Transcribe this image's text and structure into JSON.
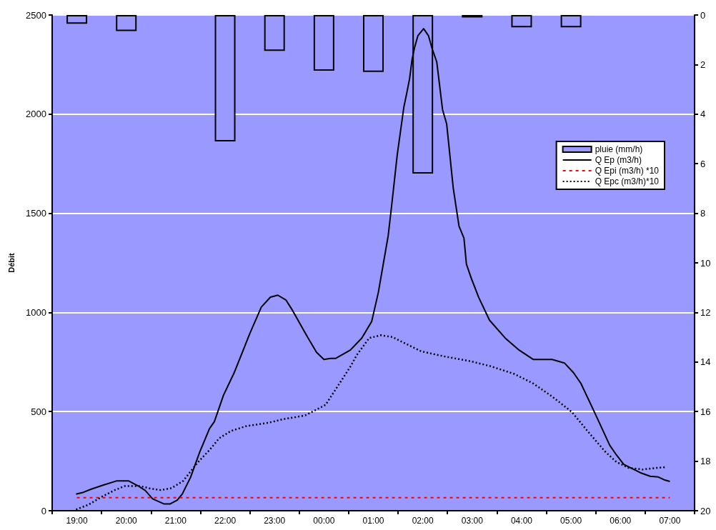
{
  "chart_data": {
    "type": "line",
    "ylabel": "Débit",
    "xlim": [
      "--01-01T18:30",
      "--01-02T07:30"
    ],
    "xticks": [
      {
        "value": "--01-01T18:30",
        "label": null
      },
      {
        "value": "--01-01T19:00",
        "label": "19:00"
      },
      {
        "value": "--01-01T19:30",
        "label": null
      },
      {
        "value": "--01-01T20:00",
        "label": "20:00"
      },
      {
        "value": "--01-01T20:30",
        "label": null
      },
      {
        "value": "--01-01T21:00",
        "label": "21:00"
      },
      {
        "value": "--01-01T21:30",
        "label": null
      },
      {
        "value": "--01-01T22:00",
        "label": "22:00"
      },
      {
        "value": "--01-01T22:30",
        "label": null
      },
      {
        "value": "--01-01T23:00",
        "label": "23:00"
      },
      {
        "value": "--01-01T23:30",
        "label": null
      },
      {
        "value": "--01-02T00:00",
        "label": "00:00"
      },
      {
        "value": "--01-02T00:30",
        "label": null
      },
      {
        "value": "--01-02T01:00",
        "label": "01:00"
      },
      {
        "value": "--01-02T01:30",
        "label": null
      },
      {
        "value": "--01-02T02:00",
        "label": "02:00"
      },
      {
        "value": "--01-02T02:30",
        "label": null
      },
      {
        "value": "--01-02T03:00",
        "label": "03:00"
      },
      {
        "value": "--01-02T03:30",
        "label": null
      },
      {
        "value": "--01-02T04:00",
        "label": "04:00"
      },
      {
        "value": "--01-02T04:30",
        "label": null
      },
      {
        "value": "--01-02T05:00",
        "label": "05:00"
      },
      {
        "value": "--01-02T05:30",
        "label": null
      },
      {
        "value": "--01-02T06:00",
        "label": "06:00"
      },
      {
        "value": "--01-02T06:30",
        "label": null
      },
      {
        "value": "--01-02T07:00",
        "label": "07:00"
      },
      {
        "value": "--01-02T07:30",
        "label": null
      }
    ],
    "ylim": [
      0,
      2500
    ],
    "yticks": [
      0,
      500,
      1000,
      1500,
      2000,
      2500
    ],
    "y2lim": [
      20,
      0
    ],
    "y2ticks": [
      0,
      2,
      4,
      6,
      8,
      10,
      12,
      14,
      16,
      18,
      20
    ],
    "grid": "y",
    "legend": "right",
    "marker": "none",
    "series": [
      {
        "name": "pluie (mm/h)",
        "type": "bar",
        "axis": "y2",
        "color": "#9999ff",
        "x": [
          "--01-01T19:00",
          "--01-01T20:00",
          "--01-01T21:00",
          "--01-01T22:00",
          "--01-01T23:00",
          "--01-02T00:00",
          "--01-02T01:00",
          "--01-02T02:00",
          "--01-02T03:00",
          "--01-02T04:00",
          "--01-02T05:00",
          "--01-02T06:00",
          "--01-02T07:00"
        ],
        "values": [
          0.35,
          0.65,
          0,
          5.1,
          1.45,
          2.25,
          2.3,
          6.4,
          0.1,
          0.5,
          0.5,
          0,
          0
        ]
      },
      {
        "name": "Q Ep (m3/h)",
        "line_style": "solid",
        "color": "#000000",
        "x": [
          "--01-01T18:59",
          "--01-01T19:08",
          "--01-01T19:17",
          "--01-01T19:31",
          "--01-01T19:48",
          "--01-01T20:03",
          "--01-01T20:14",
          "--01-01T20:23",
          "--01-01T20:32",
          "--01-01T20:46",
          "--01-01T20:53",
          "--01-01T21:02",
          "--01-01T21:08",
          "--01-01T21:18",
          "--01-01T21:29",
          "--01-01T21:41",
          "--01-01T21:47",
          "--01-01T21:58",
          "--01-01T22:11",
          "--01-01T22:22",
          "--01-01T22:30",
          "--01-01T22:44",
          "--01-01T22:55",
          "--01-01T23:04",
          "--01-01T23:14",
          "--01-01T23:22",
          "--01-01T23:40",
          "--01-01T23:51",
          "--01-02T00:00",
          "--01-02T00:08",
          "--01-02T00:14",
          "--01-02T00:32",
          "--01-02T00:46",
          "--01-02T00:58",
          "--01-02T01:06",
          "--01-02T01:18",
          "--01-02T01:22",
          "--01-02T01:29",
          "--01-02T01:37",
          "--01-02T01:40",
          "--01-02T01:44",
          "--01-02T01:47",
          "--01-02T01:50",
          "--01-02T01:54",
          "--01-02T02:01",
          "--01-02T02:07",
          "--01-02T02:11",
          "--01-02T02:17",
          "--01-02T02:24",
          "--01-02T02:29",
          "--01-02T02:37",
          "--01-02T02:44",
          "--01-02T02:50",
          "--01-02T02:53",
          "--01-02T02:59",
          "--01-02T03:08",
          "--01-02T03:21",
          "--01-02T03:40",
          "--01-02T03:57",
          "--01-02T04:14",
          "--01-02T04:37",
          "--01-02T04:52",
          "--01-02T05:03",
          "--01-02T05:12",
          "--01-02T05:29",
          "--01-02T05:47",
          "--01-02T05:55",
          "--01-02T06:04",
          "--01-02T06:24",
          "--01-02T06:36",
          "--01-02T06:46",
          "--01-02T06:53",
          "--01-02T07:00"
        ],
        "values": [
          84,
          93,
          108,
          128,
          150,
          150,
          126,
          102,
          60,
          34,
          34,
          54,
          84,
          168,
          294,
          414,
          450,
          582,
          696,
          810,
          894,
          1027,
          1077,
          1087,
          1062,
          1009,
          876,
          799,
          763,
          768,
          768,
          810,
          871,
          955,
          1100,
          1387,
          1531,
          1795,
          2035,
          2095,
          2179,
          2276,
          2335,
          2395,
          2431,
          2395,
          2335,
          2263,
          2023,
          1951,
          1627,
          1435,
          1375,
          1243,
          1171,
          1075,
          961,
          871,
          810,
          763,
          763,
          745,
          696,
          642,
          492,
          330,
          282,
          234,
          192,
          174,
          170,
          156,
          148
        ]
      },
      {
        "name": "Q Epi (m3/h) *10",
        "line_style": "dashed",
        "color": "#ff0000",
        "x": [
          "--01-01T19:00",
          "--01-02T07:00"
        ],
        "values": [
          66,
          66
        ]
      },
      {
        "name": "Q Epc (m3/h)*10",
        "line_style": "dotted",
        "color": "#000000",
        "x": [
          "--01-01T18:59",
          "--01-01T19:14",
          "--01-01T19:31",
          "--01-01T19:46",
          "--01-01T19:58",
          "--01-01T20:17",
          "--01-01T20:29",
          "--01-01T20:42",
          "--01-01T20:55",
          "--01-01T21:09",
          "--01-01T21:26",
          "--01-01T21:41",
          "--01-01T21:53",
          "--01-01T22:07",
          "--01-01T22:25",
          "--01-01T22:53",
          "--01-01T23:11",
          "--01-01T23:37",
          "--01-02T00:02",
          "--01-02T00:17",
          "--01-02T00:32",
          "--01-02T00:40",
          "--01-02T00:55",
          "--01-02T01:09",
          "--01-02T01:23",
          "--01-02T01:58",
          "--01-02T02:24",
          "--01-02T02:59",
          "--01-02T03:22",
          "--01-02T03:51",
          "--01-02T04:14",
          "--01-02T04:37",
          "--01-02T05:01",
          "--01-02T05:20",
          "--01-02T05:41",
          "--01-02T05:55",
          "--01-02T06:10",
          "--01-02T06:27",
          "--01-02T06:44",
          "--01-02T06:56"
        ],
        "values": [
          6,
          30,
          72,
          104,
          124,
          124,
          112,
          104,
          114,
          150,
          240,
          306,
          366,
          402,
          426,
          444,
          462,
          480,
          534,
          630,
          726,
          786,
          871,
          885,
          876,
          804,
          780,
          753,
          729,
          690,
          642,
          576,
          498,
          402,
          300,
          246,
          216,
          208,
          216,
          220
        ]
      }
    ]
  }
}
